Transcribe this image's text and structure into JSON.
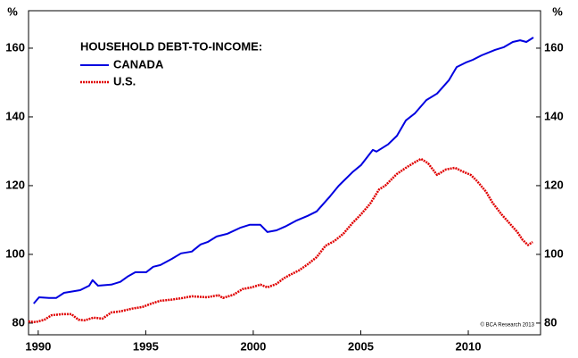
{
  "chart_data": {
    "type": "line",
    "title": "HOUSEHOLD DEBT-TO-INCOME:",
    "y_label": "%",
    "note": "© BCA Research 2013",
    "xlim": [
      1989.55,
      2013.36
    ],
    "xticks": [
      1990,
      1995,
      2000,
      2005,
      2010
    ],
    "ylim": [
      76.6,
      170.9
    ],
    "yticks": [
      80,
      100,
      120,
      140,
      160
    ],
    "grid": false,
    "legend": "top-left",
    "series": [
      {
        "name": "CANADA",
        "color": "#0000e0",
        "line_style": "solid",
        "x": [
          1989.79,
          1990.04,
          1990.5,
          1990.83,
          1991.2,
          1991.95,
          1992.37,
          1992.53,
          1992.78,
          1993.4,
          1993.82,
          1994.15,
          1994.52,
          1995.02,
          1995.35,
          1995.68,
          1996.22,
          1996.64,
          1997.14,
          1997.55,
          1997.88,
          1998.3,
          1998.8,
          1999.42,
          1999.83,
          2000.33,
          2000.66,
          2001.08,
          2001.49,
          2002.03,
          2002.53,
          2002.95,
          2003.57,
          2003.98,
          2004.61,
          2005.02,
          2005.56,
          2005.73,
          2006.27,
          2006.68,
          2007.1,
          2007.51,
          2008.05,
          2008.55,
          2009.09,
          2009.46,
          2009.88,
          2010.21,
          2010.62,
          2011.24,
          2011.66,
          2012.07,
          2012.41,
          2012.7,
          2013.03
        ],
        "values": [
          85.7,
          87.5,
          87.3,
          87.3,
          88.8,
          89.6,
          90.9,
          92.5,
          90.9,
          91.2,
          92.0,
          93.5,
          94.8,
          94.8,
          96.4,
          96.9,
          98.7,
          100.3,
          100.8,
          102.9,
          103.6,
          105.2,
          106.0,
          107.8,
          108.6,
          108.6,
          106.5,
          107.0,
          108.1,
          109.9,
          111.2,
          112.5,
          116.9,
          120.0,
          123.9,
          126.0,
          130.4,
          129.9,
          132.0,
          134.5,
          139.0,
          141.0,
          144.9,
          146.8,
          150.6,
          154.5,
          155.8,
          156.6,
          157.9,
          159.5,
          160.3,
          161.8,
          162.3,
          161.8,
          163.1
        ]
      },
      {
        "name": "U.S.",
        "color": "#e00000",
        "line_style": "dotted",
        "x": [
          1989.54,
          1989.88,
          1990.29,
          1990.62,
          1991.12,
          1991.54,
          1991.87,
          1992.16,
          1992.57,
          1992.99,
          1993.4,
          1993.82,
          1994.36,
          1994.85,
          1995.27,
          1995.68,
          1996.18,
          1996.72,
          1997.14,
          1997.84,
          1998.38,
          1998.59,
          1999.09,
          1999.5,
          1999.92,
          2000.33,
          2000.66,
          2001.08,
          2001.41,
          2001.7,
          2002.12,
          2002.53,
          2002.95,
          2003.36,
          2003.78,
          2004.19,
          2004.61,
          2005.02,
          2005.44,
          2005.85,
          2006.14,
          2006.68,
          2007.1,
          2007.51,
          2007.8,
          2008.13,
          2008.55,
          2008.96,
          2009.38,
          2009.71,
          2010.12,
          2010.41,
          2010.83,
          2011.12,
          2011.54,
          2011.95,
          2012.28,
          2012.53,
          2012.78,
          2012.99
        ],
        "values": [
          80.5,
          80.3,
          81.0,
          82.3,
          82.6,
          82.6,
          81.0,
          80.8,
          81.6,
          81.3,
          83.1,
          83.4,
          84.2,
          84.7,
          85.7,
          86.5,
          86.8,
          87.3,
          87.8,
          87.5,
          88.1,
          87.3,
          88.3,
          89.9,
          90.4,
          91.2,
          90.4,
          91.4,
          93.0,
          94.0,
          95.3,
          97.1,
          99.2,
          102.5,
          103.9,
          106.0,
          109.1,
          111.7,
          114.8,
          118.9,
          120.0,
          123.4,
          125.2,
          126.8,
          127.8,
          126.5,
          123.1,
          124.7,
          125.2,
          124.2,
          123.1,
          121.3,
          118.2,
          115.1,
          111.7,
          108.8,
          106.5,
          104.2,
          102.7,
          103.6
        ]
      }
    ]
  }
}
